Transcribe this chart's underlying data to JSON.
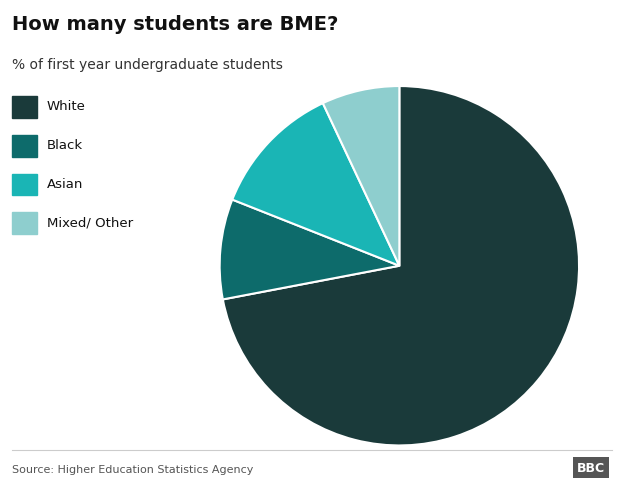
{
  "title": "How many students are BME?",
  "subtitle": "% of first year undergraduate students",
  "source": "Source: Higher Education Statistics Agency",
  "categories": [
    "White",
    "Black",
    "Asian",
    "Mixed/ Other"
  ],
  "values": [
    72,
    9,
    12,
    7
  ],
  "colors": [
    "#1a3a3a",
    "#0d6b6b",
    "#1ab5b5",
    "#8ecece"
  ],
  "legend_colors": [
    "#1a3a3a",
    "#0d6b6b",
    "#1ab5b5",
    "#8ecece"
  ],
  "startangle": 90,
  "wedge_edgecolor": "white",
  "wedge_linewidth": 1.5,
  "background_color": "#ffffff",
  "bbc_label": "BBC"
}
